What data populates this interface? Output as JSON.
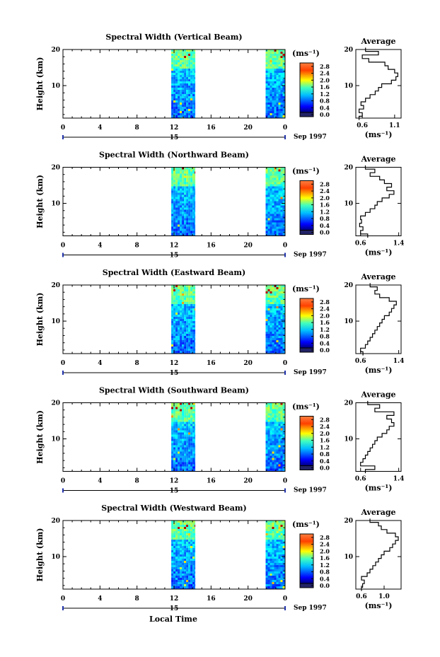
{
  "xlabel": "Local Time",
  "chart_data": [
    {
      "type": "heatmap",
      "title": "Spectral Width (Vertical Beam)",
      "ylabel": "Height (km)",
      "y_ticks": [
        "20",
        "10"
      ],
      "x_ticks": [
        "0",
        "4",
        "8",
        "12",
        "16",
        "20",
        "0"
      ],
      "date_label": "15",
      "date_suffix": "Sep 1997",
      "xlim": [
        0,
        24
      ],
      "ylim": [
        1,
        20
      ],
      "data_blocks": [
        [
          11.7,
          14.3
        ],
        [
          21.9,
          24.0
        ]
      ],
      "colorbar": {
        "unit": "(ms⁻¹)",
        "ticks": [
          "2.8",
          "2.4",
          "2.0",
          "1.6",
          "1.2",
          "0.8",
          "0.4",
          "0.0"
        ],
        "range": [
          0,
          3.0
        ]
      },
      "average": {
        "title": "Average",
        "xlabel": "(ms⁻¹)",
        "xlim": [
          0.5,
          1.2
        ],
        "x_ticks": [
          "0.6",
          "1.1"
        ],
        "x_tick_values": [
          0.6,
          1.1
        ],
        "y_ticks": [
          "20",
          "10"
        ],
        "heights": [
          1,
          2,
          3,
          4,
          5,
          6,
          7,
          8,
          9,
          10,
          11,
          12,
          13,
          14,
          15,
          16,
          17,
          18,
          19,
          20
        ],
        "values": [
          0.55,
          0.6,
          0.55,
          0.62,
          0.58,
          0.65,
          0.72,
          0.8,
          0.85,
          0.9,
          1.05,
          1.12,
          1.15,
          1.1,
          1.0,
          0.95,
          0.7,
          0.6,
          0.85,
          0.65
        ]
      }
    },
    {
      "type": "heatmap",
      "title": "Spectral Width (Northward Beam)",
      "ylabel": "Height (km)",
      "y_ticks": [
        "20",
        "10"
      ],
      "x_ticks": [
        "0",
        "4",
        "8",
        "12",
        "16",
        "20",
        "0"
      ],
      "date_label": "15",
      "date_suffix": "Sep 1997",
      "xlim": [
        0,
        24
      ],
      "ylim": [
        1,
        20
      ],
      "data_blocks": [
        [
          11.7,
          14.3
        ],
        [
          21.9,
          24.0
        ]
      ],
      "colorbar": {
        "unit": "(ms⁻¹)",
        "ticks": [
          "2.8",
          "2.4",
          "2.0",
          "1.6",
          "1.2",
          "0.8",
          "0.4",
          "0.0"
        ],
        "range": [
          0,
          3.0
        ]
      },
      "average": {
        "title": "Average",
        "xlabel": "(ms⁻¹)",
        "xlim": [
          0.5,
          1.45
        ],
        "x_ticks": [
          "0.6",
          "1.4"
        ],
        "x_tick_values": [
          0.6,
          1.4
        ],
        "y_ticks": [
          "20",
          "10"
        ],
        "heights": [
          1,
          2,
          3,
          4,
          5,
          6,
          7,
          8,
          9,
          10,
          11,
          12,
          13,
          14,
          15,
          16,
          17,
          18,
          19,
          20
        ],
        "values": [
          0.75,
          0.6,
          0.65,
          0.58,
          0.62,
          0.6,
          0.7,
          0.8,
          0.9,
          0.95,
          1.05,
          1.2,
          1.3,
          1.15,
          1.25,
          1.1,
          1.0,
          0.8,
          0.9,
          0.7
        ]
      }
    },
    {
      "type": "heatmap",
      "title": "Spectral Width (Eastward Beam)",
      "ylabel": "Height (km)",
      "y_ticks": [
        "20",
        "10"
      ],
      "x_ticks": [
        "0",
        "4",
        "8",
        "12",
        "16",
        "20",
        "0"
      ],
      "date_label": "15",
      "date_suffix": "Sep 1997",
      "xlim": [
        0,
        24
      ],
      "ylim": [
        1,
        20
      ],
      "data_blocks": [
        [
          11.7,
          14.3
        ],
        [
          21.9,
          24.0
        ]
      ],
      "colorbar": {
        "unit": "(ms⁻¹)",
        "ticks": [
          "2.8",
          "2.4",
          "2.0",
          "1.6",
          "1.2",
          "0.8",
          "0.4",
          "0.0"
        ],
        "range": [
          0,
          3.0
        ]
      },
      "average": {
        "title": "Average",
        "xlabel": "(ms⁻¹)",
        "xlim": [
          0.5,
          1.45
        ],
        "x_ticks": [
          "0.6",
          "1.4"
        ],
        "x_tick_values": [
          0.6,
          1.4
        ],
        "y_ticks": [
          "20",
          "10"
        ],
        "heights": [
          1,
          2,
          3,
          4,
          5,
          6,
          7,
          8,
          9,
          10,
          11,
          12,
          13,
          14,
          15,
          16,
          17,
          18,
          19,
          20
        ],
        "values": [
          0.65,
          0.6,
          0.7,
          0.75,
          0.8,
          0.85,
          0.9,
          0.95,
          1.0,
          1.05,
          1.1,
          1.2,
          1.25,
          1.3,
          1.35,
          1.2,
          1.0,
          0.9,
          0.95,
          0.8
        ]
      }
    },
    {
      "type": "heatmap",
      "title": "Spectral Width (Southward Beam)",
      "ylabel": "Height (km)",
      "y_ticks": [
        "20",
        "10"
      ],
      "x_ticks": [
        "0",
        "4",
        "8",
        "12",
        "16",
        "20",
        "0"
      ],
      "date_label": "15",
      "date_suffix": "Sep 1997",
      "xlim": [
        0,
        24
      ],
      "ylim": [
        1,
        20
      ],
      "data_blocks": [
        [
          11.7,
          14.3
        ],
        [
          21.9,
          24.0
        ]
      ],
      "colorbar": {
        "unit": "(ms⁻¹)",
        "ticks": [
          "2.8",
          "2.4",
          "2.0",
          "1.6",
          "1.2",
          "0.8",
          "0.4",
          "0.0"
        ],
        "range": [
          0,
          3.0
        ]
      },
      "average": {
        "title": "Average",
        "xlabel": "(ms⁻¹)",
        "xlim": [
          0.5,
          1.45
        ],
        "x_ticks": [
          "0.6",
          "1.4"
        ],
        "x_tick_values": [
          0.6,
          1.4
        ],
        "y_ticks": [
          "20",
          "10"
        ],
        "heights": [
          1,
          2,
          3,
          4,
          5,
          6,
          7,
          8,
          9,
          10,
          11,
          12,
          13,
          14,
          15,
          16,
          17,
          18,
          19,
          20
        ],
        "values": [
          0.7,
          0.9,
          0.6,
          0.65,
          0.7,
          0.75,
          0.8,
          0.85,
          0.9,
          0.95,
          1.05,
          1.15,
          1.2,
          1.3,
          1.25,
          1.15,
          1.3,
          0.9,
          1.0,
          0.75
        ]
      }
    },
    {
      "type": "heatmap",
      "title": "Spectral Width (Westward Beam)",
      "ylabel": "Height (km)",
      "y_ticks": [
        "20",
        "10"
      ],
      "x_ticks": [
        "0",
        "4",
        "8",
        "12",
        "16",
        "20",
        "0"
      ],
      "date_label": "15",
      "date_suffix": "Sep 1997",
      "xlim": [
        0,
        24
      ],
      "ylim": [
        1,
        20
      ],
      "data_blocks": [
        [
          11.7,
          14.3
        ],
        [
          21.9,
          24.0
        ]
      ],
      "colorbar": {
        "unit": "(ms⁻¹)",
        "ticks": [
          "2.8",
          "2.4",
          "2.0",
          "1.6",
          "1.2",
          "0.8",
          "0.4",
          "0.0"
        ],
        "range": [
          0,
          3.0
        ]
      },
      "average": {
        "title": "Average",
        "xlabel": "(ms⁻¹)",
        "xlim": [
          0.5,
          1.3
        ],
        "x_ticks": [
          "0.6",
          "1.0"
        ],
        "x_tick_values": [
          0.6,
          1.0
        ],
        "y_ticks": [
          "20",
          "10"
        ],
        "heights": [
          1,
          2,
          3,
          4,
          5,
          6,
          7,
          8,
          9,
          10,
          11,
          12,
          13,
          14,
          15,
          16,
          17,
          18,
          19,
          20
        ],
        "values": [
          0.6,
          0.62,
          0.65,
          0.6,
          0.7,
          0.75,
          0.8,
          0.85,
          0.9,
          0.95,
          1.0,
          1.1,
          1.15,
          1.2,
          1.25,
          1.2,
          1.05,
          0.95,
          0.9,
          0.75
        ]
      }
    }
  ]
}
